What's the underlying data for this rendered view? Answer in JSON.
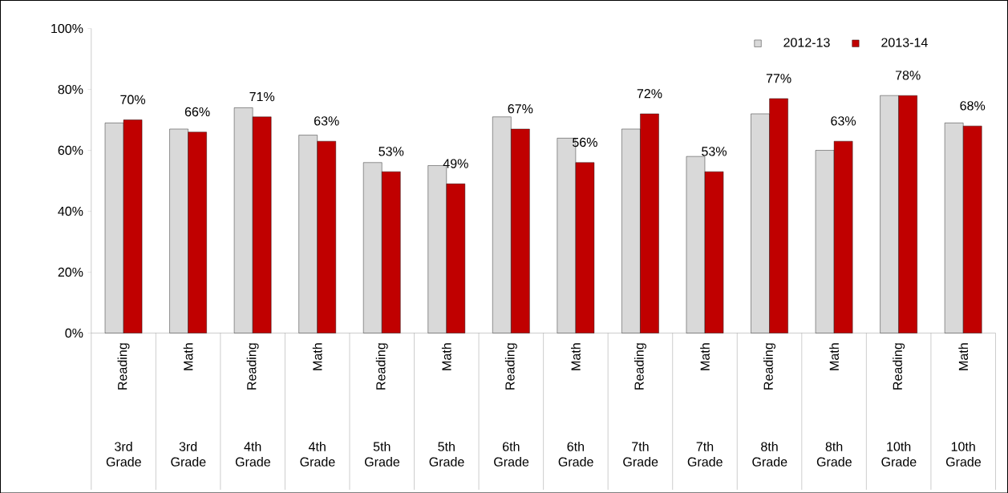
{
  "chart_data": {
    "type": "bar",
    "categories": [
      "Reading",
      "Math",
      "Reading",
      "Math",
      "Reading",
      "Math",
      "Reading",
      "Math",
      "Reading",
      "Math",
      "Reading",
      "Math",
      "Reading",
      "Math"
    ],
    "series": [
      {
        "name": "2012-13",
        "color": "#d9d9d9",
        "values": [
          69,
          67,
          74,
          65,
          56,
          55,
          71,
          64,
          67,
          58,
          72,
          60,
          78,
          69
        ]
      },
      {
        "name": "2013-14",
        "color": "#c00000",
        "values": [
          70,
          66,
          71,
          63,
          53,
          49,
          67,
          56,
          72,
          53,
          77,
          63,
          78,
          68
        ],
        "value_labels": [
          "70%",
          "66%",
          "71%",
          "63%",
          "53%",
          "49%",
          "67%",
          "56%",
          "72%",
          "53%",
          "77%",
          "63%",
          "78%",
          "68%"
        ]
      }
    ],
    "annotations": [
      "3rd Grade",
      "3rd Grade",
      "4th Grade",
      "4th Grade",
      "5th Grade",
      "5th Grade",
      "6th Grade",
      "6th Grade",
      "7th Grade",
      "7th Grade",
      "8th Grade",
      "8th Grade",
      "10th Grade",
      "10th Grade"
    ],
    "ylim": [
      0,
      100
    ],
    "yticks": [
      {
        "value": 0,
        "label": "0%"
      },
      {
        "value": 20,
        "label": "20%"
      },
      {
        "value": 40,
        "label": "40%"
      },
      {
        "value": 60,
        "label": "60%"
      },
      {
        "value": 80,
        "label": "80%"
      },
      {
        "value": 100,
        "label": "100%"
      }
    ],
    "legend": "top right"
  }
}
